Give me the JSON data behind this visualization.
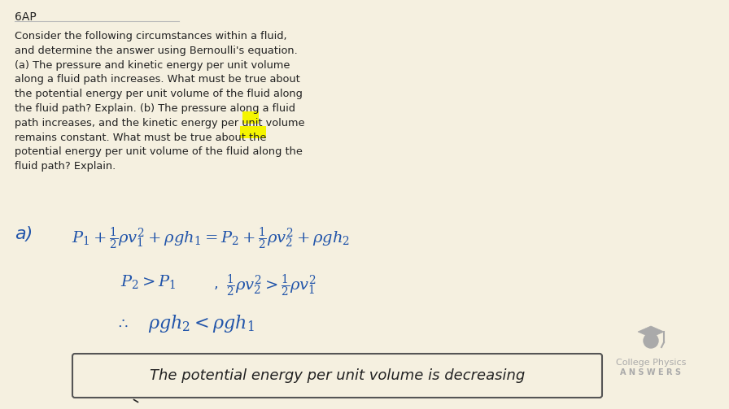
{
  "background_color": "#f5f0e0",
  "label_6ap": "6AP",
  "problem_text": "Consider the following circumstances within a fluid,\nand determine the answer using Bernoulli's equation.\n(a) The pressure and kinetic energy per unit volume\nalong a fluid path increases. What must be true about\nthe potential energy per unit volume of the fluid along\nthe fluid path? Explain. (b) The pressure along a fluid\npath increases, and the kinetic energy per unit volume\nremains constant. What must be true about the\npotential energy per unit volume of the fluid along the\nfluid path? Explain.",
  "line_color": "#555555",
  "text_color": "#222222",
  "blue_color": "#2255aa",
  "highlight_color": "#f5f500",
  "logo_color": "#aaaaaa",
  "logo_text1": "College Physics",
  "logo_text2": "A N S W E R S"
}
